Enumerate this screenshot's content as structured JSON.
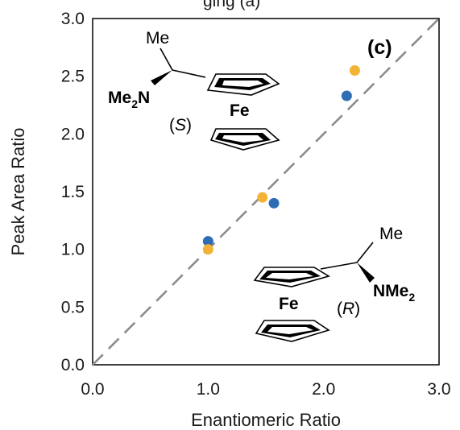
{
  "top_text": "ging     (a)",
  "chart_data": {
    "type": "scatter",
    "title": "",
    "xlabel": "Enantiomeric Ratio",
    "ylabel": "Peak Area Ratio",
    "xlim": [
      0,
      3
    ],
    "ylim": [
      0,
      3
    ],
    "xticks": [
      "0.0",
      "1.0",
      "2.0",
      "3.0"
    ],
    "yticks": [
      "0.0",
      "0.5",
      "1.0",
      "1.5",
      "2.0",
      "2.5",
      "3.0"
    ],
    "grid": false,
    "legend": "none",
    "reference_line": {
      "x": [
        0,
        3
      ],
      "y": [
        0,
        3
      ],
      "style": "dashed",
      "color": "#8c8c8c"
    },
    "series": [
      {
        "color": "#2e6db4",
        "points": [
          [
            1.0,
            1.07
          ],
          [
            1.57,
            1.4
          ],
          [
            2.2,
            2.33
          ]
        ]
      },
      {
        "color": "#f2b233",
        "points": [
          [
            1.0,
            1.0
          ],
          [
            1.47,
            1.45
          ],
          [
            2.27,
            2.55
          ]
        ]
      }
    ],
    "annotations": {
      "panel_label": "(c)",
      "s_enantiomer": {
        "methyl": "Me",
        "amine": "Me",
        "amine_sub": "2",
        "amine_tail": "N",
        "metal": "Fe",
        "config_open": "(",
        "config": "S",
        "config_close": ")"
      },
      "r_enantiomer": {
        "methyl": "Me",
        "amine": "NMe",
        "amine_sub": "2",
        "metal": "Fe",
        "config_open": "(",
        "config": "R",
        "config_close": ")"
      }
    }
  }
}
